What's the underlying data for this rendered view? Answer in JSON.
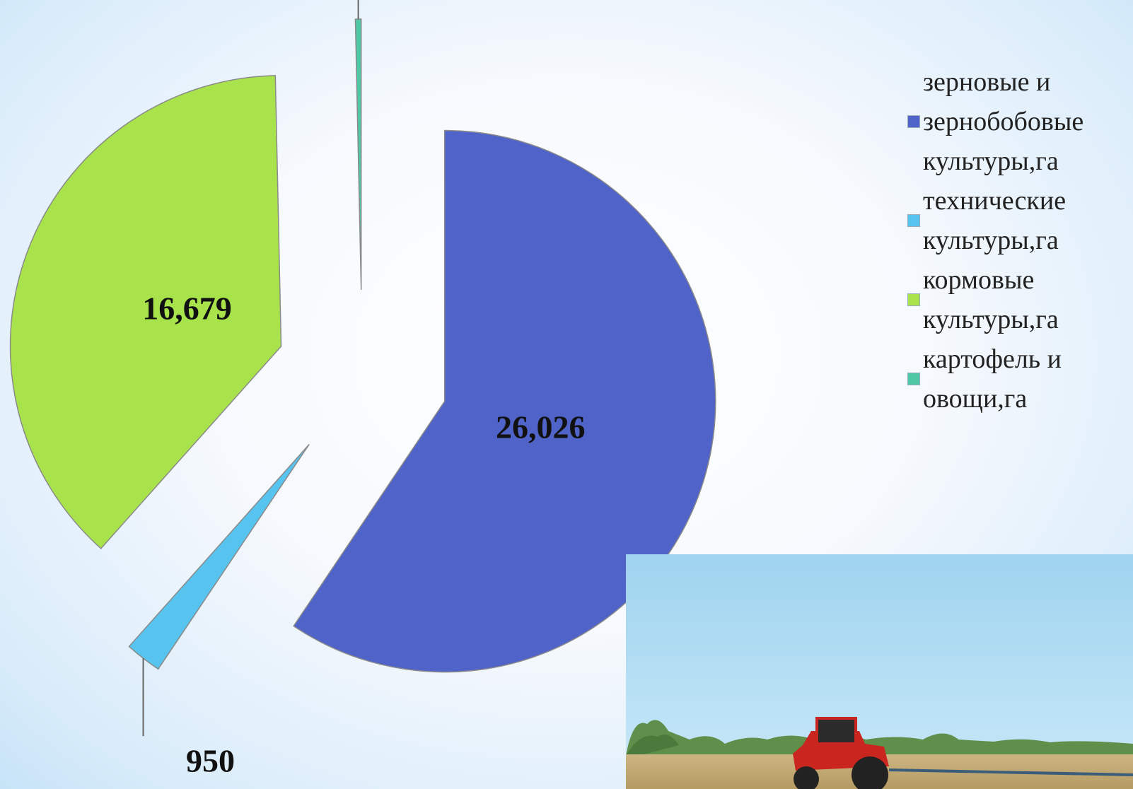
{
  "chart_data": {
    "type": "pie",
    "categories": [
      "зерновые и зернобобовые культуры,га",
      "технические культуры,га",
      "кормовые культуры,га",
      "картофель и овощи,га"
    ],
    "values": [
      26026,
      950,
      16679,
      150
    ],
    "value_labels": [
      "26,026",
      "950",
      "16,679",
      null
    ],
    "colors": [
      "#4f63c9",
      "#56c4ee",
      "#a9e34b",
      "#4fc8a6"
    ],
    "legend": "right"
  }
}
